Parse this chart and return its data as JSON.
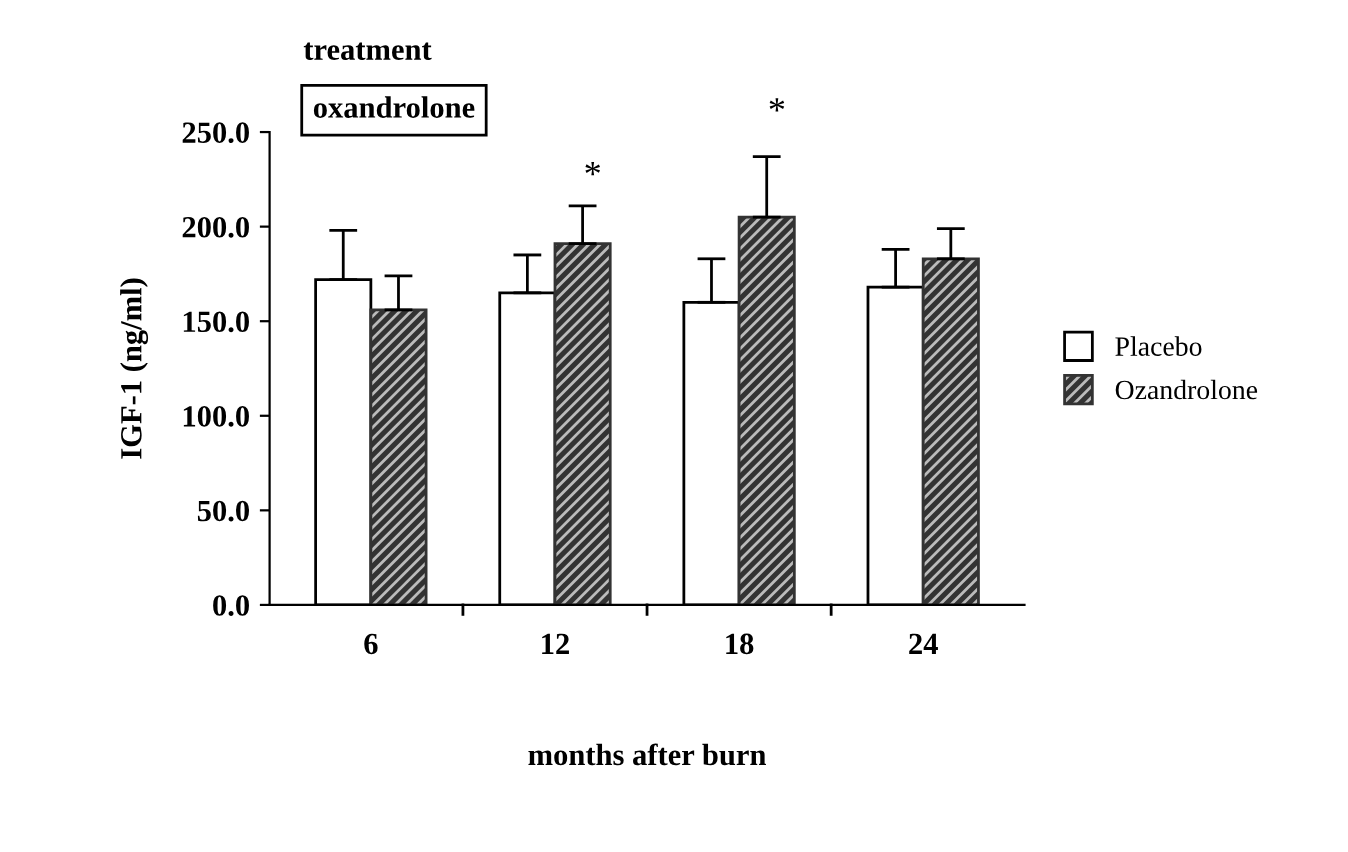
{
  "chart_data": {
    "type": "bar",
    "xlabel": "months after burn",
    "ylabel": "IGF-1 (ng/ml)",
    "categories": [
      "6",
      "12",
      "18",
      "24"
    ],
    "series": [
      {
        "name": "Placebo",
        "color": "#ffffff",
        "values": [
          172,
          165,
          160,
          168
        ],
        "errors": [
          26,
          20,
          23,
          20
        ]
      },
      {
        "name": "Ozandrolone",
        "color": "#333333",
        "values": [
          156,
          191,
          205,
          183
        ],
        "errors": [
          18,
          20,
          32,
          16
        ]
      }
    ],
    "ylim": [
      0,
      250
    ],
    "yticks": [
      {
        "value": 0,
        "label": "0.0"
      },
      {
        "value": 50,
        "label": "50.0"
      },
      {
        "value": 100,
        "label": "100.0"
      },
      {
        "value": 150,
        "label": "150.0"
      },
      {
        "value": 200,
        "label": "200.0"
      },
      {
        "value": 250,
        "label": "250.0"
      }
    ],
    "annotations": [
      "treatment",
      "oxandrolone",
      "*",
      "*"
    ],
    "legend": "right",
    "grid": false
  }
}
